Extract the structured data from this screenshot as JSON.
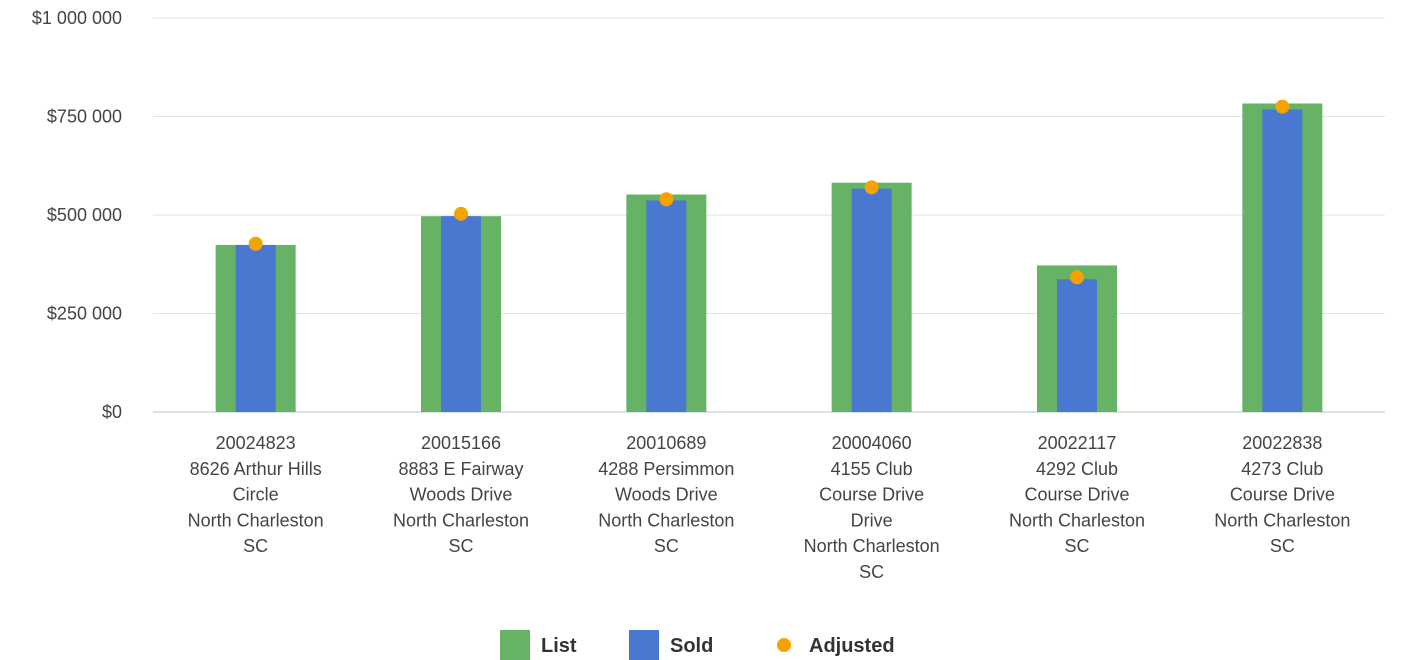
{
  "chart_data": {
    "type": "bar",
    "title": "",
    "xlabel": "",
    "ylabel": "",
    "ylim": [
      0,
      1000000
    ],
    "yticks": [
      {
        "value": 0,
        "label": "$0"
      },
      {
        "value": 250000,
        "label": "$250 000"
      },
      {
        "value": 500000,
        "label": "$500 000"
      },
      {
        "value": 750000,
        "label": "$750 000"
      },
      {
        "value": 1000000,
        "label": "$1 000 000"
      }
    ],
    "categories": [
      [
        "20024823",
        "8626 Arthur Hills",
        "Circle",
        "North Charleston",
        "SC"
      ],
      [
        "20015166",
        "8883 E Fairway",
        "Woods Drive",
        "North Charleston",
        "SC"
      ],
      [
        "20010689",
        "4288 Persimmon",
        "Woods Drive",
        "North Charleston",
        "SC"
      ],
      [
        "20004060",
        "4155 Club",
        "Course Drive",
        "Drive",
        "North Charleston",
        "SC"
      ],
      [
        "20022117",
        "4292 Club",
        "Course Drive",
        "North Charleston",
        "SC"
      ],
      [
        "20022838",
        "4273 Club",
        "Course Drive",
        "North Charleston",
        "SC"
      ]
    ],
    "series": [
      {
        "name": "List",
        "kind": "bar",
        "color": "#66b366",
        "values": [
          424000,
          497000,
          552000,
          582000,
          372000,
          783000
        ]
      },
      {
        "name": "Sold",
        "kind": "bar",
        "color": "#4a78d0",
        "values": [
          424000,
          497000,
          537000,
          567000,
          337000,
          768000
        ]
      },
      {
        "name": "Adjusted",
        "kind": "point",
        "color": "#f5a300",
        "values": [
          427000,
          503000,
          540000,
          570000,
          342000,
          775000
        ]
      }
    ],
    "legend_position": "bottom-center",
    "grid": true
  }
}
